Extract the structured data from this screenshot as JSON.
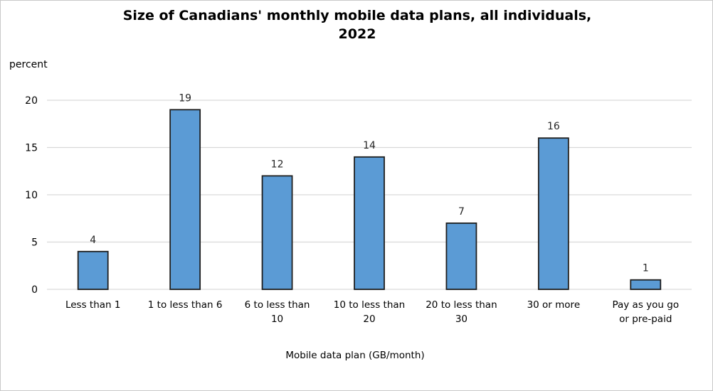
{
  "chart": {
    "title_lines": [
      "Size of Canadians' monthly mobile data plans, all individuals,",
      "2022"
    ],
    "y_unit_label": "percent",
    "x_axis_title": "Mobile data plan (GB/month)"
  },
  "chart_data": {
    "type": "bar",
    "title": "Size of Canadians' monthly mobile data plans, all individuals, 2022",
    "categories": [
      "Less than 1",
      "1 to less than 6",
      "6 to less than 10",
      "10 to less than 20",
      "20 to less than 30",
      "30 or more",
      "Pay as you go or pre-paid"
    ],
    "category_label_lines": [
      [
        "Less than 1"
      ],
      [
        "1 to less than 6"
      ],
      [
        "6 to less than",
        "10"
      ],
      [
        "10 to less than",
        "20"
      ],
      [
        "20 to less than",
        "30"
      ],
      [
        "30 or more"
      ],
      [
        "Pay as you go",
        "or pre-paid"
      ]
    ],
    "values": [
      4,
      19,
      12,
      14,
      7,
      16,
      1
    ],
    "data_labels": [
      4,
      19,
      12,
      14,
      7,
      16,
      1
    ],
    "xlabel": "Mobile data plan (GB/month)",
    "ylabel": "percent",
    "ylim": [
      0,
      20
    ],
    "yticks": [
      0,
      5,
      10,
      15,
      20
    ],
    "grid": true,
    "legend": false,
    "colors": {
      "bar_fill": "#5B9BD5",
      "bar_stroke": "#1f1f1f",
      "gridline": "#D9D9D9",
      "text": "#000000",
      "value_label": "#262626"
    }
  }
}
